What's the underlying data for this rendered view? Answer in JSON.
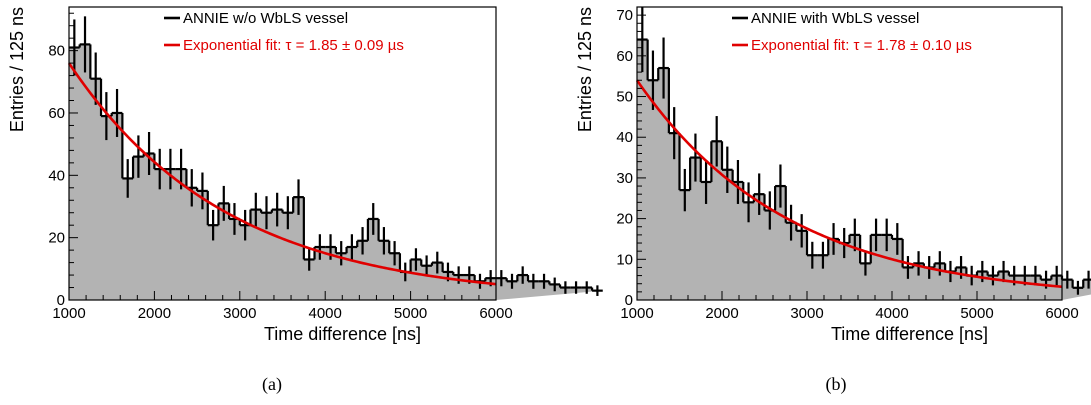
{
  "chart_data": [
    {
      "type": "histogram",
      "caption": "(a)",
      "xlabel": "Time difference [ns]",
      "ylabel": "Entries / 125 ns",
      "xlim": [
        1000,
        6000
      ],
      "ylim": [
        0,
        94
      ],
      "x_ticks": [
        1000,
        2000,
        3000,
        4000,
        5000,
        6000
      ],
      "y_ticks": [
        0,
        20,
        40,
        60,
        80
      ],
      "bin_width": 125,
      "fill_color": "#b3b3b3",
      "hist_color": "#000000",
      "fit_color": "#e00000",
      "legend_position": "top-right",
      "legend": [
        {
          "label": "ANNIE w/o WbLS vessel",
          "kind": "hist"
        },
        {
          "label": "Exponential fit: τ = 1.85 ± 0.09 µs",
          "kind": "fit"
        }
      ],
      "fit": {
        "function": "exponential",
        "tau_ns": 1850,
        "amplitude_at_1000": 76
      },
      "bins": [
        {
          "y": 81,
          "err": 9
        },
        {
          "y": 82,
          "err": 9
        },
        {
          "y": 71,
          "err": 8.4
        },
        {
          "y": 59,
          "err": 7.7
        },
        {
          "y": 60,
          "err": 7.7
        },
        {
          "y": 39,
          "err": 6.2
        },
        {
          "y": 46,
          "err": 6.8
        },
        {
          "y": 47,
          "err": 6.9
        },
        {
          "y": 42,
          "err": 6.5
        },
        {
          "y": 42,
          "err": 6.5
        },
        {
          "y": 42,
          "err": 6.5
        },
        {
          "y": 36,
          "err": 6
        },
        {
          "y": 35,
          "err": 5.9
        },
        {
          "y": 24,
          "err": 4.9
        },
        {
          "y": 31,
          "err": 5.6
        },
        {
          "y": 26,
          "err": 5.1
        },
        {
          "y": 24,
          "err": 4.9
        },
        {
          "y": 29,
          "err": 5.4
        },
        {
          "y": 28,
          "err": 5.3
        },
        {
          "y": 29,
          "err": 5.4
        },
        {
          "y": 28,
          "err": 5.3
        },
        {
          "y": 33,
          "err": 5.7
        },
        {
          "y": 13,
          "err": 3.6
        },
        {
          "y": 17,
          "err": 4.1
        },
        {
          "y": 17,
          "err": 4.1
        },
        {
          "y": 15,
          "err": 3.9
        },
        {
          "y": 17,
          "err": 4.1
        },
        {
          "y": 19,
          "err": 4.4
        },
        {
          "y": 26,
          "err": 5.1
        },
        {
          "y": 19,
          "err": 4.4
        },
        {
          "y": 15,
          "err": 3.9
        },
        {
          "y": 9,
          "err": 3
        },
        {
          "y": 13,
          "err": 3.6
        },
        {
          "y": 11,
          "err": 3.3
        },
        {
          "y": 12,
          "err": 3.5
        },
        {
          "y": 9,
          "err": 3
        },
        {
          "y": 8,
          "err": 2.8
        },
        {
          "y": 8,
          "err": 2.8
        },
        {
          "y": 6,
          "err": 2.4
        },
        {
          "y": 7,
          "err": 2.6
        },
        {
          "y": 7,
          "err": 2.6
        },
        {
          "y": 6,
          "err": 2.4
        },
        {
          "y": 8,
          "err": 2.8
        },
        {
          "y": 6,
          "err": 2.4
        },
        {
          "y": 6,
          "err": 2.4
        },
        {
          "y": 5,
          "err": 2.2
        },
        {
          "y": 4,
          "err": 2
        },
        {
          "y": 4,
          "err": 2
        },
        {
          "y": 4,
          "err": 2
        },
        {
          "y": 3,
          "err": 1.7
        }
      ]
    },
    {
      "type": "histogram",
      "caption": "(b)",
      "xlabel": "Time difference [ns]",
      "ylabel": "Entries / 125 ns",
      "xlim": [
        1000,
        6000
      ],
      "ylim": [
        0,
        72
      ],
      "x_ticks": [
        1000,
        2000,
        3000,
        4000,
        5000,
        6000
      ],
      "y_ticks": [
        0,
        10,
        20,
        30,
        40,
        50,
        60,
        70
      ],
      "bin_width": 125,
      "fill_color": "#b3b3b3",
      "hist_color": "#000000",
      "fit_color": "#e00000",
      "legend_position": "top-right",
      "legend": [
        {
          "label": "ANNIE with WbLS vessel",
          "kind": "hist"
        },
        {
          "label": "Exponential fit: τ = 1.78 ± 0.10 µs",
          "kind": "fit"
        }
      ],
      "fit": {
        "function": "exponential",
        "tau_ns": 1780,
        "amplitude_at_1000": 54
      },
      "bins": [
        {
          "y": 64,
          "err": 8
        },
        {
          "y": 54,
          "err": 7.3
        },
        {
          "y": 57,
          "err": 7.5
        },
        {
          "y": 41,
          "err": 6.4
        },
        {
          "y": 27,
          "err": 5.2
        },
        {
          "y": 35,
          "err": 5.9
        },
        {
          "y": 29,
          "err": 5.4
        },
        {
          "y": 39,
          "err": 6.2
        },
        {
          "y": 32,
          "err": 5.7
        },
        {
          "y": 29,
          "err": 5.4
        },
        {
          "y": 24,
          "err": 4.9
        },
        {
          "y": 26,
          "err": 5.1
        },
        {
          "y": 22,
          "err": 4.7
        },
        {
          "y": 28,
          "err": 5.3
        },
        {
          "y": 19,
          "err": 4.4
        },
        {
          "y": 17,
          "err": 4.1
        },
        {
          "y": 11,
          "err": 3.3
        },
        {
          "y": 11,
          "err": 3.3
        },
        {
          "y": 15,
          "err": 3.9
        },
        {
          "y": 14,
          "err": 3.7
        },
        {
          "y": 16,
          "err": 4
        },
        {
          "y": 9,
          "err": 3
        },
        {
          "y": 16,
          "err": 4
        },
        {
          "y": 16,
          "err": 4
        },
        {
          "y": 15,
          "err": 3.9
        },
        {
          "y": 8,
          "err": 2.8
        },
        {
          "y": 9,
          "err": 3
        },
        {
          "y": 8,
          "err": 2.8
        },
        {
          "y": 9,
          "err": 3
        },
        {
          "y": 7,
          "err": 2.6
        },
        {
          "y": 8,
          "err": 2.8
        },
        {
          "y": 6,
          "err": 2.4
        },
        {
          "y": 7,
          "err": 2.6
        },
        {
          "y": 6,
          "err": 2.4
        },
        {
          "y": 7,
          "err": 2.6
        },
        {
          "y": 6,
          "err": 2.4
        },
        {
          "y": 6,
          "err": 2.4
        },
        {
          "y": 6,
          "err": 2.4
        },
        {
          "y": 5,
          "err": 2.2
        },
        {
          "y": 6,
          "err": 2.4
        },
        {
          "y": 5,
          "err": 2.2
        },
        {
          "y": 3,
          "err": 1.7
        },
        {
          "y": 5,
          "err": 2.2
        },
        {
          "y": 6,
          "err": 2.4
        },
        {
          "y": 5,
          "err": 2.2
        },
        {
          "y": 8,
          "err": 2.8
        },
        {
          "y": 4,
          "err": 2
        },
        {
          "y": 5,
          "err": 2.2
        },
        {
          "y": 4,
          "err": 2
        },
        {
          "y": 5,
          "err": 2.2
        }
      ]
    }
  ]
}
